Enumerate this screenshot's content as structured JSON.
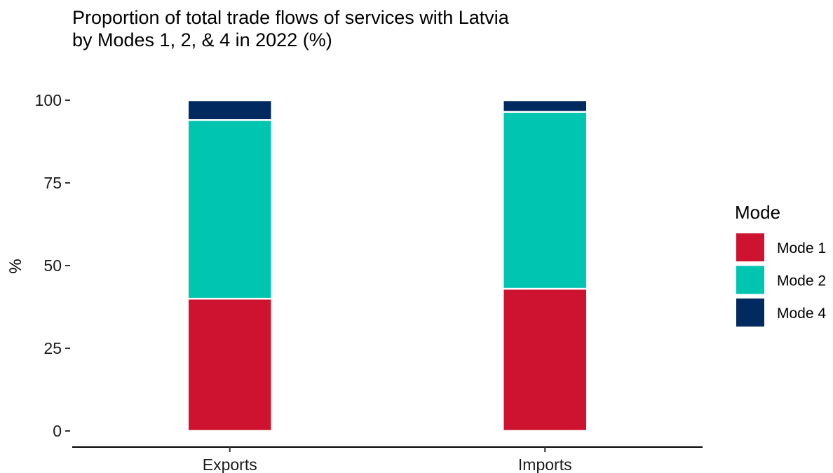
{
  "chart_data": {
    "type": "bar",
    "stacked": true,
    "title": "Proportion of total trade flows of services with Latvia",
    "subtitle": "by Modes 1, 2, & 4 in 2022 (%)",
    "xlabel": "",
    "ylabel": "%",
    "categories": [
      "Exports",
      "Imports"
    ],
    "ylim": [
      0,
      100
    ],
    "yticks": [
      0,
      25,
      50,
      75,
      100
    ],
    "ytick_labels": [
      "0",
      "25",
      "50",
      "75",
      "100"
    ],
    "series": [
      {
        "name": "Mode 1",
        "color": "#ce1330",
        "values": [
          40,
          43
        ]
      },
      {
        "name": "Mode 2",
        "color": "#00c5b1",
        "values": [
          54,
          53.5
        ]
      },
      {
        "name": "Mode 4",
        "color": "#002a60",
        "values": [
          6,
          3.5
        ]
      }
    ],
    "legend": {
      "title": "Mode",
      "placement": "right"
    },
    "grid": false
  }
}
